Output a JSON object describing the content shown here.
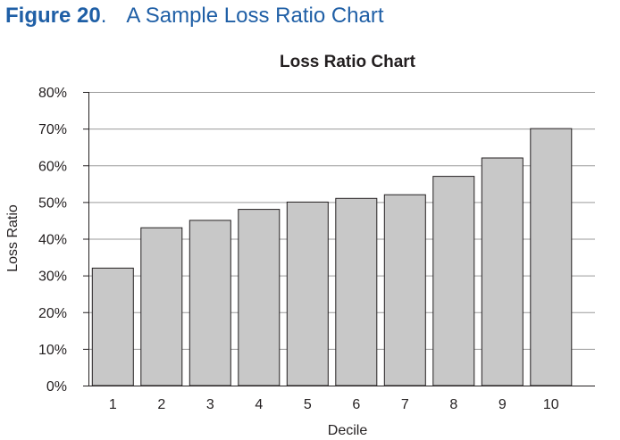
{
  "figure": {
    "label": "Figure 20",
    "dot": ".",
    "title": "A Sample Loss Ratio Chart"
  },
  "colors": {
    "figure_header": "#1f5fa6",
    "bar_fill": "#c8c8c8",
    "bar_stroke": "#231f20",
    "grid": "#9a9a9a",
    "axis": "#231f20"
  },
  "chart_data": {
    "type": "bar",
    "title": "Loss Ratio Chart",
    "xlabel": "Decile",
    "ylabel": "Loss Ratio",
    "categories": [
      "1",
      "2",
      "3",
      "4",
      "5",
      "6",
      "7",
      "8",
      "9",
      "10"
    ],
    "values": [
      32,
      43,
      45,
      48,
      50,
      51,
      52,
      57,
      62,
      70
    ],
    "value_unit": "%",
    "ylim": [
      0,
      80
    ],
    "y_ticks": [
      0,
      10,
      20,
      30,
      40,
      50,
      60,
      70,
      80
    ],
    "y_tick_labels": [
      "0%",
      "10%",
      "20%",
      "30%",
      "40%",
      "50%",
      "60%",
      "70%",
      "80%"
    ],
    "grid": true,
    "legend": "none"
  }
}
